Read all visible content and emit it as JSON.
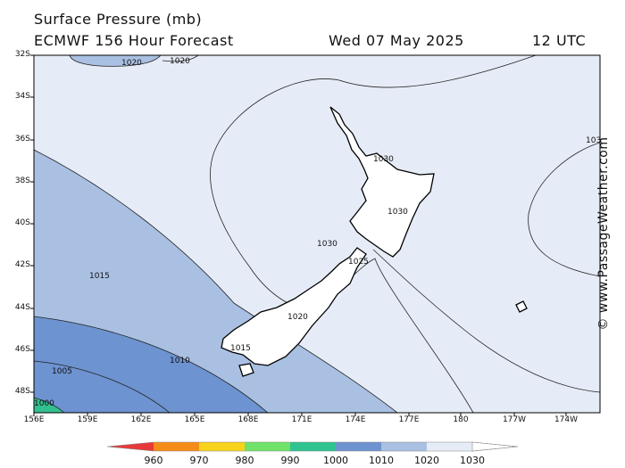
{
  "header": {
    "title": "Surface Pressure (mb)",
    "model": "ECMWF 156 Hour Forecast",
    "date": "Wed 07 May 2025",
    "time": "12 UTC"
  },
  "map": {
    "lat_labels": [
      "32S",
      "34S",
      "36S",
      "38S",
      "40S",
      "42S",
      "44S",
      "46S",
      "48S"
    ],
    "lon_labels": [
      "156E",
      "159E",
      "162E",
      "165E",
      "168E",
      "171E",
      "174E",
      "177E",
      "180",
      "177W",
      "174W"
    ],
    "isobar_labels": [
      "1020",
      "1020",
      "1030",
      "1030",
      "1030",
      "1025",
      "1020",
      "1015",
      "1015",
      "1010",
      "1005",
      "1000",
      "103"
    ],
    "colors": {
      "c1030": "#e6ecf7",
      "c1020": "#a9c0e2",
      "c1010": "#6d93d0",
      "c1000": "#33c08f",
      "coast": "#000000"
    }
  },
  "colorbar": {
    "labels": [
      "960",
      "970",
      "980",
      "990",
      "1000",
      "1010",
      "1020",
      "1030"
    ],
    "colors": [
      "#e8393a",
      "#f58c18",
      "#f7d31c",
      "#70e26a",
      "#2fc38f",
      "#6d93d0",
      "#a9c0e2",
      "#e6ecf7"
    ]
  },
  "credit": "© www.PassageWeather.com"
}
